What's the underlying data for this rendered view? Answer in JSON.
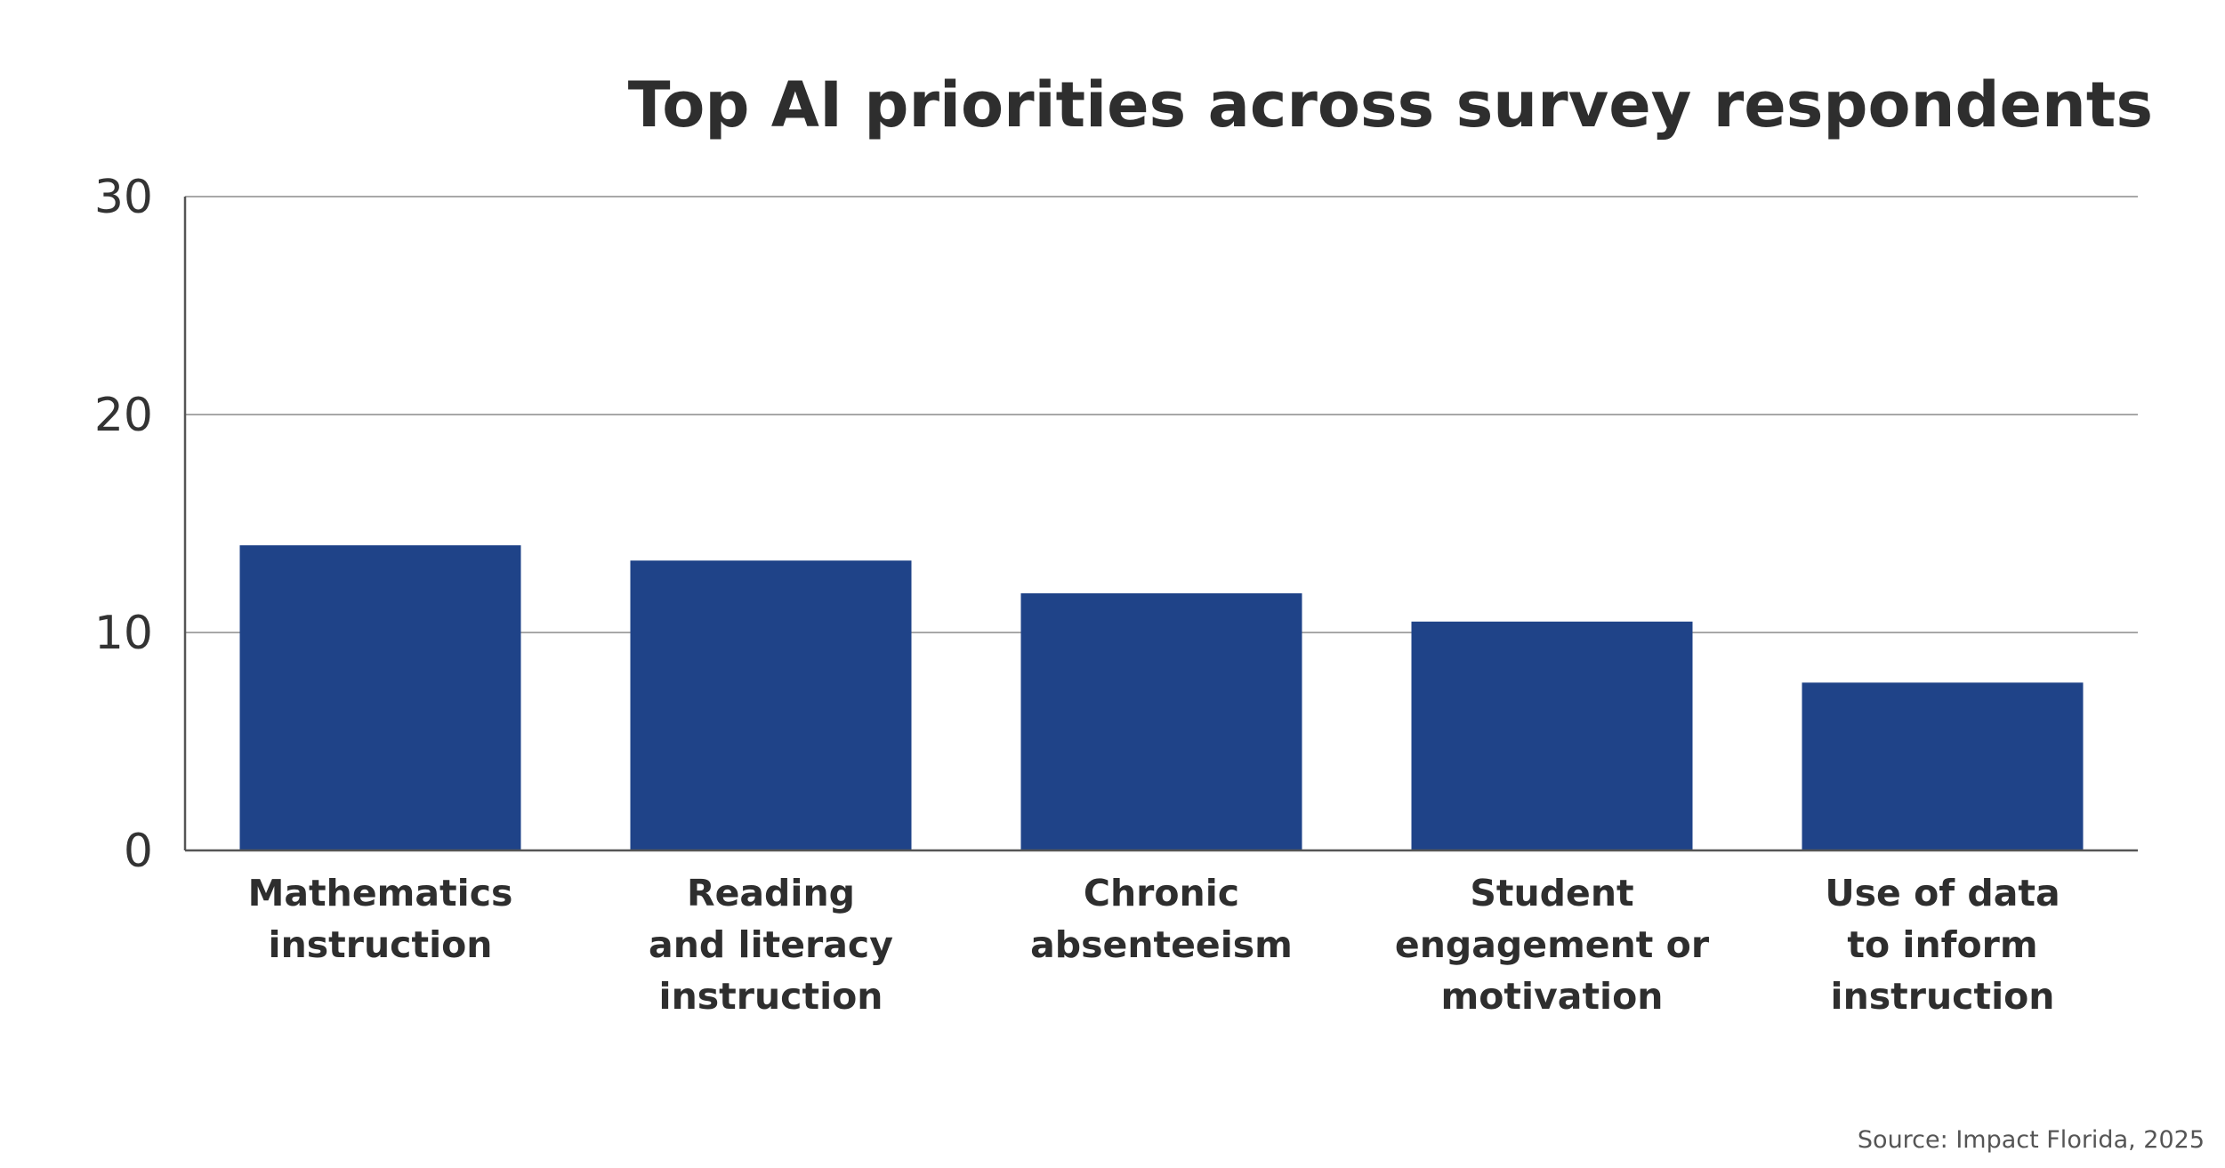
{
  "chart_data": {
    "type": "bar",
    "title": "Top AI priorities across survey respondents",
    "categories": [
      [
        "Mathematics",
        "instruction"
      ],
      [
        "Reading",
        "and literacy",
        "instruction"
      ],
      [
        "Chronic",
        "absenteeism"
      ],
      [
        "Student",
        "engagement or",
        "motivation"
      ],
      [
        "Use of data",
        "to inform",
        "instruction"
      ]
    ],
    "values": [
      14,
      13.3,
      11.8,
      10.5,
      7.7
    ],
    "ylim": [
      0,
      30
    ],
    "yticks": [
      0,
      10,
      20,
      30
    ],
    "xlabel": "",
    "ylabel": "",
    "grid": true,
    "bar_color": "#1f4388",
    "source": "Source: Impact Florida, 2025"
  }
}
